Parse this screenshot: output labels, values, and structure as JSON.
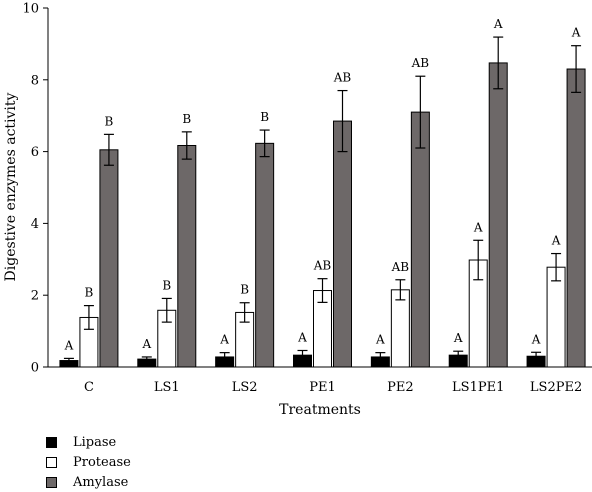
{
  "chart_data": {
    "type": "bar",
    "xlabel": "Treatments",
    "ylabel": "Digestive enzymes activity",
    "ylim": [
      0,
      10
    ],
    "yticks": [
      "0",
      "2",
      "4",
      "6",
      "8",
      "10"
    ],
    "categories": [
      "C",
      "LS1",
      "LS2",
      "PE1",
      "PE2",
      "LS1PE1",
      "LS2PE2"
    ],
    "series": [
      {
        "name": "Lipase",
        "color": "#000000",
        "values": [
          0.18,
          0.22,
          0.28,
          0.33,
          0.28,
          0.33,
          0.3
        ],
        "errors": [
          0.06,
          0.06,
          0.12,
          0.13,
          0.12,
          0.11,
          0.11
        ],
        "letters": [
          "A",
          "A",
          "A",
          "A",
          "A",
          "A",
          "A"
        ]
      },
      {
        "name": "Protease",
        "color": "#ffffff",
        "values": [
          1.38,
          1.58,
          1.52,
          2.13,
          2.15,
          2.98,
          2.78
        ],
        "errors": [
          0.33,
          0.33,
          0.27,
          0.33,
          0.28,
          0.55,
          0.38
        ],
        "letters": [
          "B",
          "B",
          "B",
          "AB",
          "AB",
          "A",
          "A"
        ]
      },
      {
        "name": "Amylase",
        "color": "#6d6868",
        "values": [
          6.05,
          6.17,
          6.23,
          6.85,
          7.1,
          8.47,
          8.3
        ],
        "errors": [
          0.43,
          0.38,
          0.37,
          0.85,
          1.0,
          0.72,
          0.65
        ],
        "letters": [
          "B",
          "B",
          "B",
          "AB",
          "AB",
          "A",
          "A"
        ]
      }
    ]
  }
}
